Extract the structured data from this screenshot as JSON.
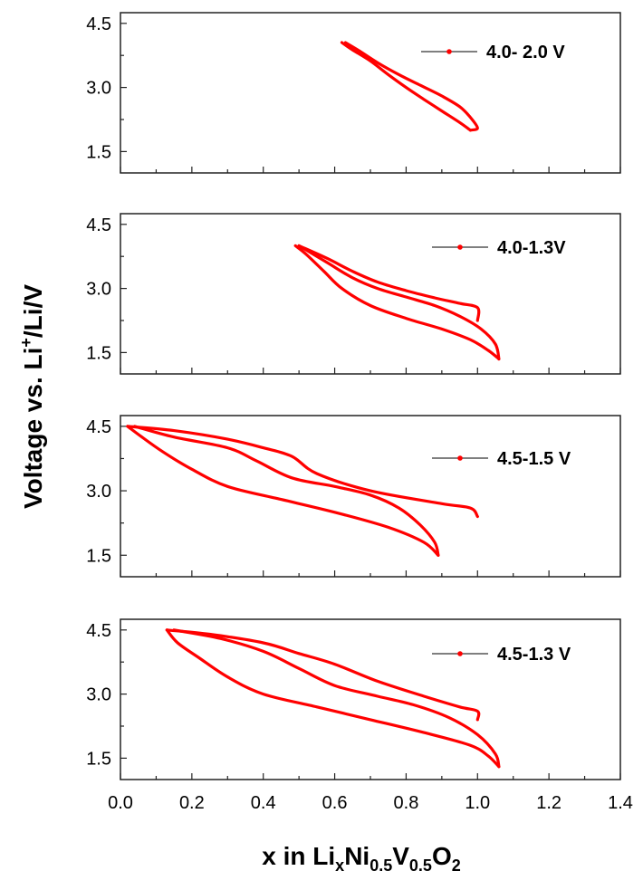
{
  "chart_data": {
    "type": "line",
    "ylabel_parts": [
      "Voltage vs. Li",
      "+",
      "/Li/V"
    ],
    "xlabel_parts": [
      {
        "t": "x in Li",
        "s": "n"
      },
      {
        "t": "x",
        "s": "sub"
      },
      {
        "t": "Ni",
        "s": "n"
      },
      {
        "t": "0.5",
        "s": "sub"
      },
      {
        "t": "V",
        "s": "n"
      },
      {
        "t": "0.5",
        "s": "sub"
      },
      {
        "t": "O",
        "s": "n"
      },
      {
        "t": "2",
        "s": "sub"
      }
    ],
    "series_color": "#ff0000",
    "xlim": [
      0.0,
      1.4
    ],
    "x_ticks": [
      "0.0",
      "0.2",
      "0.4",
      "0.6",
      "0.8",
      "1.0",
      "1.2",
      "1.4"
    ],
    "panels": [
      {
        "legend": "4.0- 2.0 V",
        "ylim": [
          1.0,
          4.75
        ],
        "y_ticks": [
          "1.5",
          "3.0",
          "4.5"
        ],
        "discharge": [
          [
            0.62,
            4.05
          ],
          [
            0.65,
            3.88
          ],
          [
            0.7,
            3.62
          ],
          [
            0.75,
            3.3
          ],
          [
            0.8,
            3.0
          ],
          [
            0.85,
            2.72
          ],
          [
            0.9,
            2.45
          ],
          [
            0.95,
            2.18
          ],
          [
            0.98,
            2.0
          ]
        ],
        "charge": [
          [
            0.98,
            2.0
          ],
          [
            1.0,
            2.05
          ],
          [
            0.98,
            2.3
          ],
          [
            0.95,
            2.55
          ],
          [
            0.9,
            2.8
          ],
          [
            0.84,
            3.05
          ],
          [
            0.78,
            3.3
          ],
          [
            0.72,
            3.58
          ],
          [
            0.67,
            3.85
          ],
          [
            0.63,
            4.05
          ]
        ]
      },
      {
        "legend": "4.0-1.3V",
        "ylim": [
          1.0,
          4.75
        ],
        "y_ticks": [
          "1.5",
          "3.0",
          "4.5"
        ],
        "discharge": [
          [
            0.49,
            4.0
          ],
          [
            0.52,
            3.8
          ],
          [
            0.57,
            3.4
          ],
          [
            0.62,
            3.0
          ],
          [
            0.7,
            2.6
          ],
          [
            0.8,
            2.3
          ],
          [
            0.9,
            2.05
          ],
          [
            0.98,
            1.8
          ],
          [
            1.03,
            1.55
          ],
          [
            1.06,
            1.35
          ]
        ],
        "charge": [
          [
            1.06,
            1.35
          ],
          [
            1.05,
            1.7
          ],
          [
            1.01,
            2.05
          ],
          [
            0.95,
            2.35
          ],
          [
            0.88,
            2.6
          ],
          [
            0.8,
            2.8
          ],
          [
            0.72,
            3.0
          ],
          [
            0.65,
            3.25
          ],
          [
            0.58,
            3.6
          ],
          [
            0.5,
            4.0
          ]
        ],
        "tail": [
          [
            0.5,
            4.0
          ],
          [
            0.58,
            3.7
          ],
          [
            0.65,
            3.4
          ],
          [
            0.72,
            3.15
          ],
          [
            0.8,
            2.95
          ],
          [
            0.88,
            2.78
          ],
          [
            0.95,
            2.65
          ],
          [
            1.0,
            2.55
          ],
          [
            1.0,
            2.25
          ]
        ]
      },
      {
        "legend": "4.5-1.5 V",
        "ylim": [
          1.0,
          4.75
        ],
        "y_ticks": [
          "1.5",
          "3.0",
          "4.5"
        ],
        "discharge": [
          [
            0.02,
            4.5
          ],
          [
            0.06,
            4.25
          ],
          [
            0.12,
            3.9
          ],
          [
            0.2,
            3.5
          ],
          [
            0.3,
            3.1
          ],
          [
            0.45,
            2.8
          ],
          [
            0.6,
            2.5
          ],
          [
            0.75,
            2.15
          ],
          [
            0.85,
            1.8
          ],
          [
            0.89,
            1.5
          ]
        ],
        "charge": [
          [
            0.89,
            1.5
          ],
          [
            0.88,
            1.8
          ],
          [
            0.84,
            2.2
          ],
          [
            0.78,
            2.6
          ],
          [
            0.7,
            2.9
          ],
          [
            0.6,
            3.1
          ],
          [
            0.48,
            3.3
          ],
          [
            0.38,
            3.7
          ],
          [
            0.3,
            4.0
          ],
          [
            0.15,
            4.25
          ],
          [
            0.04,
            4.5
          ]
        ],
        "tail": [
          [
            0.02,
            4.5
          ],
          [
            0.15,
            4.4
          ],
          [
            0.3,
            4.2
          ],
          [
            0.4,
            4.0
          ],
          [
            0.48,
            3.8
          ],
          [
            0.55,
            3.4
          ],
          [
            0.7,
            3.0
          ],
          [
            0.9,
            2.7
          ],
          [
            0.98,
            2.6
          ],
          [
            1.0,
            2.4
          ]
        ]
      },
      {
        "legend": "4.5-1.3 V",
        "ylim": [
          1.0,
          4.75
        ],
        "y_ticks": [
          "1.5",
          "3.0",
          "4.5"
        ],
        "discharge": [
          [
            0.13,
            4.5
          ],
          [
            0.16,
            4.2
          ],
          [
            0.22,
            3.85
          ],
          [
            0.3,
            3.4
          ],
          [
            0.4,
            3.0
          ],
          [
            0.55,
            2.7
          ],
          [
            0.7,
            2.4
          ],
          [
            0.85,
            2.1
          ],
          [
            0.98,
            1.8
          ],
          [
            1.03,
            1.55
          ],
          [
            1.06,
            1.3
          ]
        ],
        "charge": [
          [
            1.06,
            1.3
          ],
          [
            1.05,
            1.6
          ],
          [
            1.0,
            2.05
          ],
          [
            0.92,
            2.45
          ],
          [
            0.82,
            2.75
          ],
          [
            0.72,
            2.95
          ],
          [
            0.6,
            3.2
          ],
          [
            0.5,
            3.6
          ],
          [
            0.4,
            4.0
          ],
          [
            0.28,
            4.3
          ],
          [
            0.15,
            4.5
          ]
        ],
        "tail": [
          [
            0.13,
            4.5
          ],
          [
            0.25,
            4.4
          ],
          [
            0.4,
            4.2
          ],
          [
            0.5,
            3.95
          ],
          [
            0.6,
            3.7
          ],
          [
            0.72,
            3.3
          ],
          [
            0.85,
            2.95
          ],
          [
            0.95,
            2.7
          ],
          [
            1.0,
            2.6
          ],
          [
            1.0,
            2.4
          ]
        ]
      }
    ]
  }
}
